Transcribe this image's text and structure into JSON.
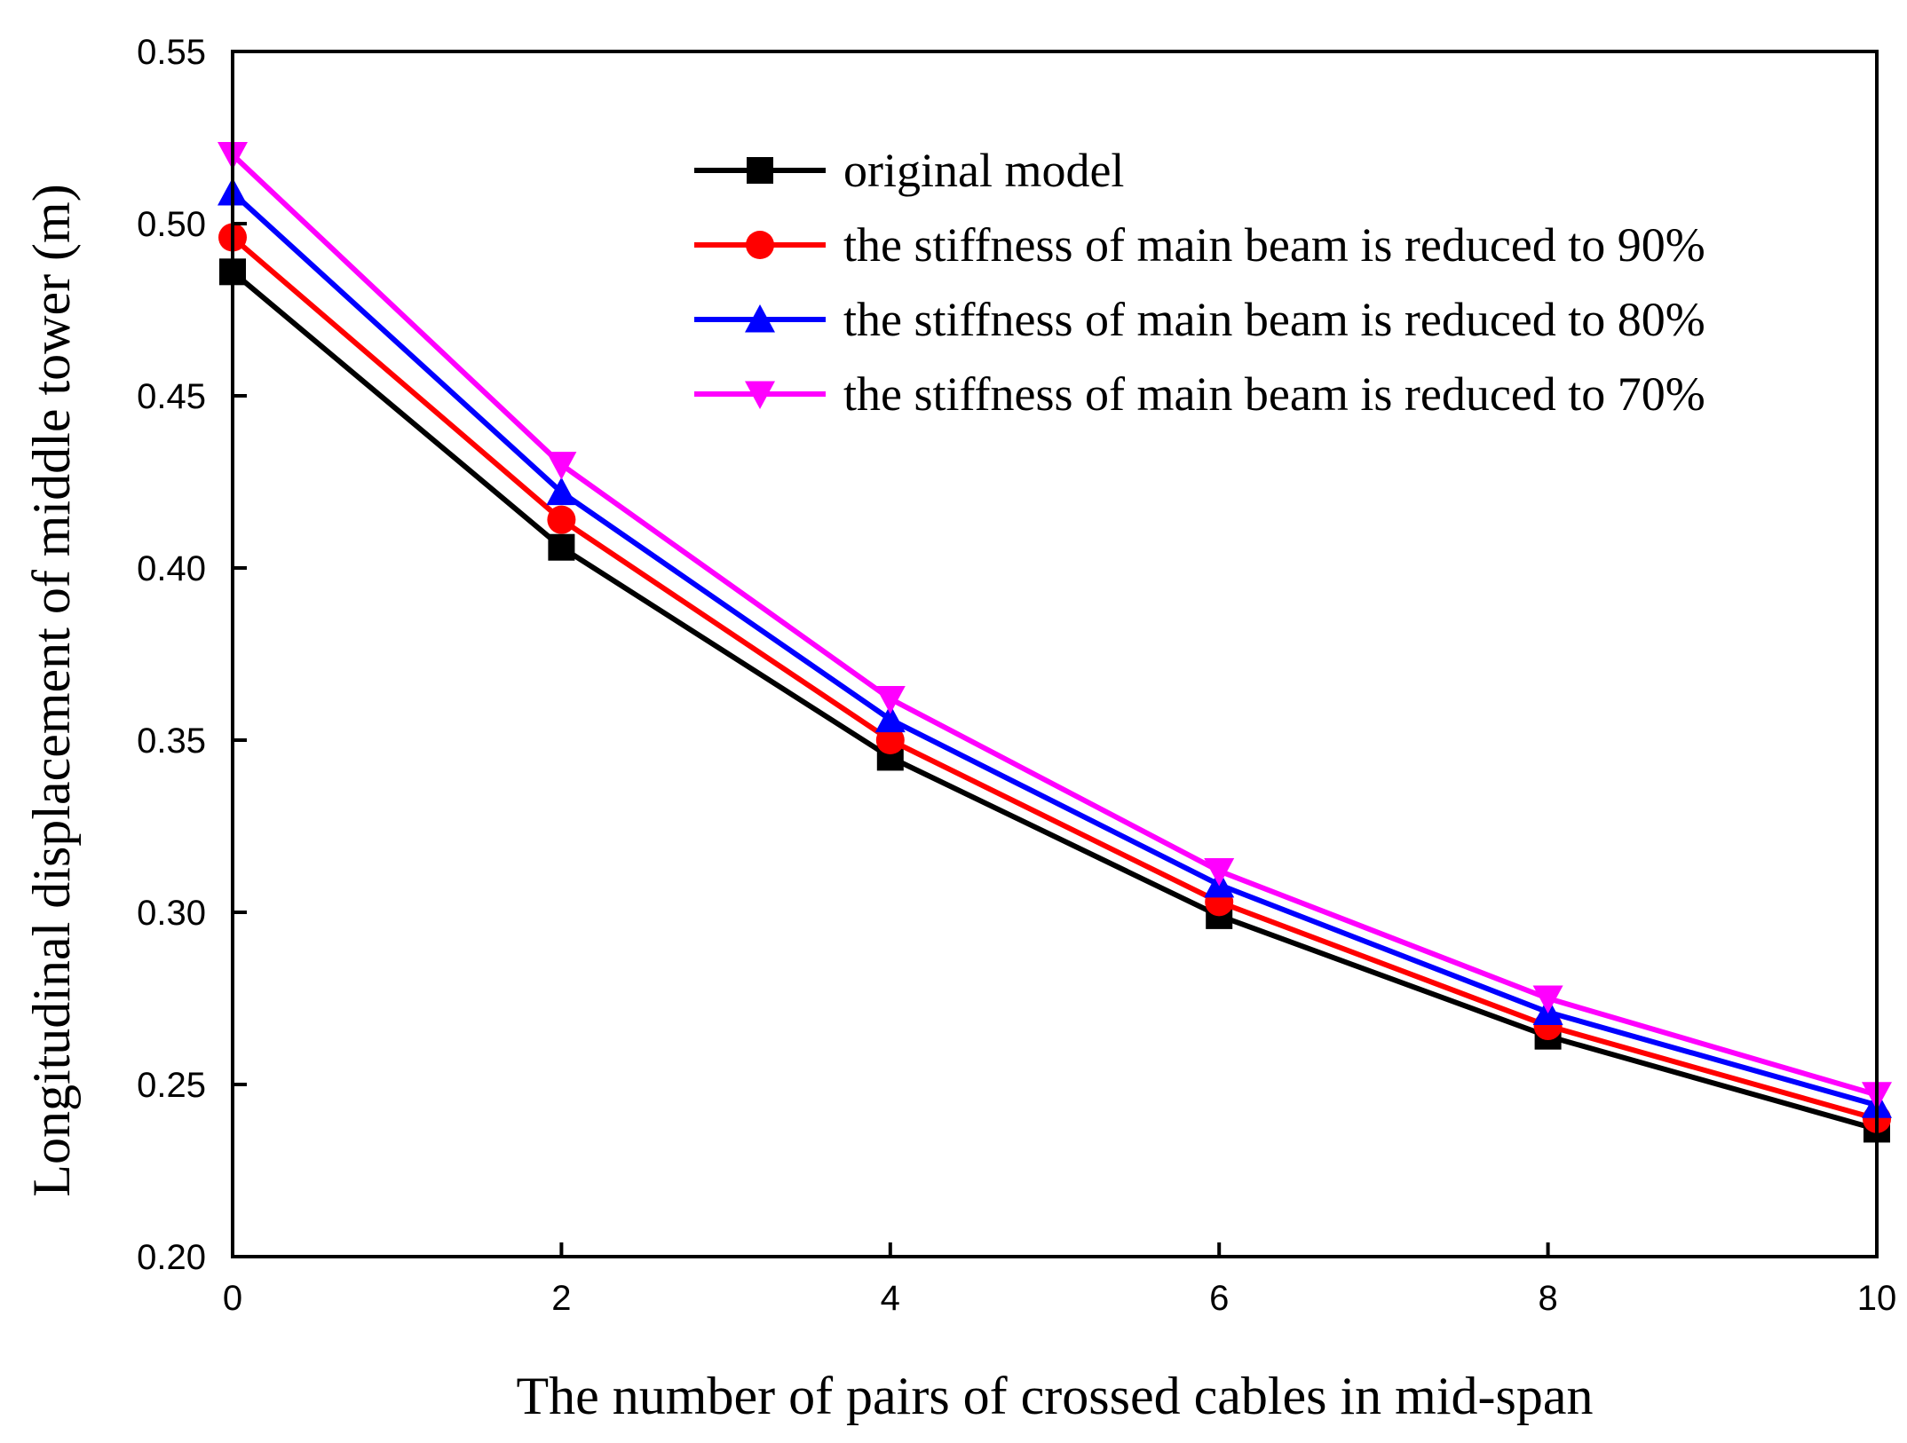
{
  "chart_data": {
    "type": "line",
    "title": "",
    "xlabel": "The number of pairs of crossed cables in mid-span",
    "ylabel": "Longitudinal displacement of middle tower (m)",
    "x": [
      0,
      2,
      4,
      6,
      8,
      10
    ],
    "xlim": [
      0,
      10
    ],
    "ylim": [
      0.2,
      0.55
    ],
    "xticks": [
      0,
      2,
      4,
      6,
      8,
      10
    ],
    "xtick_labels": [
      "0",
      "2",
      "4",
      "6",
      "8",
      "10"
    ],
    "yticks": [
      0.2,
      0.25,
      0.3,
      0.35,
      0.4,
      0.45,
      0.5,
      0.55
    ],
    "ytick_labels": [
      "0.20",
      "0.25",
      "0.30",
      "0.35",
      "0.40",
      "0.45",
      "0.50",
      "0.55"
    ],
    "grid": false,
    "legend_position": "top-right",
    "series": [
      {
        "name": "original model",
        "color": "#000000",
        "marker": "square",
        "values": [
          0.486,
          0.406,
          0.345,
          0.299,
          0.264,
          0.237
        ]
      },
      {
        "name": "the stiffness of main beam is reduced to 90%",
        "color": "#ff0000",
        "marker": "circle",
        "values": [
          0.496,
          0.414,
          0.35,
          0.303,
          0.267,
          0.24
        ]
      },
      {
        "name": "the stiffness of main beam is reduced to 80%",
        "color": "#0000ff",
        "marker": "triangle-up",
        "values": [
          0.509,
          0.422,
          0.356,
          0.308,
          0.271,
          0.244
        ]
      },
      {
        "name": "the stiffness of main beam is reduced to 70%",
        "color": "#ff00ff",
        "marker": "triangle-down",
        "values": [
          0.52,
          0.43,
          0.362,
          0.312,
          0.275,
          0.247
        ]
      }
    ]
  }
}
